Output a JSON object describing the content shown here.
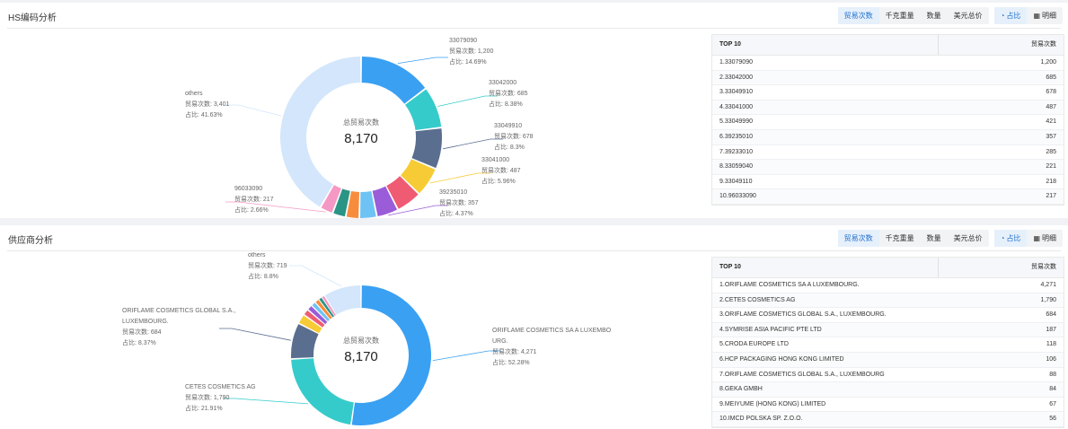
{
  "toolbar": {
    "metrics": [
      "贸易次数",
      "千克重量",
      "数量",
      "美元总价"
    ],
    "views": [
      "占比",
      "明细"
    ]
  },
  "panels": [
    {
      "title": "HS编码分析",
      "center": {
        "label": "总贸易次数",
        "value": "8,170"
      },
      "table": {
        "header": [
          "TOP 10",
          "贸易次数"
        ],
        "rows": [
          [
            "1.33079090",
            "1,200"
          ],
          [
            "2.33042000",
            "685"
          ],
          [
            "3.33049910",
            "678"
          ],
          [
            "4.33041000",
            "487"
          ],
          [
            "5.33049990",
            "421"
          ],
          [
            "6.39235010",
            "357"
          ],
          [
            "7.39233010",
            "285"
          ],
          [
            "8.33059040",
            "221"
          ],
          [
            "9.33049110",
            "218"
          ],
          [
            "10.96033090",
            "217"
          ]
        ]
      },
      "chart_data": {
        "type": "pie",
        "center_label": "总贸易次数",
        "total": 8170,
        "slices": [
          {
            "label": "33079090",
            "value": 1200,
            "share": "14.69%",
            "color": "#3aa0f2"
          },
          {
            "label": "33042000",
            "value": 685,
            "share": "8.38%",
            "color": "#36cbcb"
          },
          {
            "label": "33049910",
            "value": 678,
            "share": "8.3%",
            "color": "#5a6e8f"
          },
          {
            "label": "33041000",
            "value": 487,
            "share": "5.96%",
            "color": "#f6cb35"
          },
          {
            "label": "33049990",
            "value": 421,
            "share": "",
            "color": "#ef5b73"
          },
          {
            "label": "39235010",
            "value": 357,
            "share": "4.37%",
            "color": "#9a5cd9"
          },
          {
            "label": "39233010",
            "value": 285,
            "share": "",
            "color": "#6ec3f4"
          },
          {
            "label": "33059040",
            "value": 221,
            "share": "",
            "color": "#f78d3c"
          },
          {
            "label": "33049110",
            "value": 218,
            "share": "",
            "color": "#2a9485"
          },
          {
            "label": "96033090",
            "value": 217,
            "share": "2.66%",
            "color": "#f598c4"
          },
          {
            "label": "others",
            "value": 3401,
            "share": "41.63%",
            "color": "#d3e6fb"
          }
        ],
        "callouts": [
          {
            "slice": 0,
            "lines": [
              "33079090",
              "贸易次数: 1,200",
              "占比: 14.69%"
            ]
          },
          {
            "slice": 1,
            "lines": [
              "33042000",
              "贸易次数: 685",
              "占比: 8.38%"
            ]
          },
          {
            "slice": 2,
            "lines": [
              "33049910",
              "贸易次数: 678",
              "占比: 8.3%"
            ]
          },
          {
            "slice": 3,
            "lines": [
              "33041000",
              "贸易次数: 487",
              "占比: 5.96%"
            ]
          },
          {
            "slice": 5,
            "lines": [
              "39235010",
              "贸易次数: 357",
              "占比: 4.37%"
            ]
          },
          {
            "slice": 9,
            "lines": [
              "96033090",
              "贸易次数: 217",
              "占比: 2.66%"
            ]
          },
          {
            "slice": 10,
            "lines": [
              "others",
              "贸易次数: 3,401",
              "占比: 41.63%"
            ]
          }
        ]
      }
    },
    {
      "title": "供应商分析",
      "center": {
        "label": "总贸易次数",
        "value": "8,170"
      },
      "table": {
        "header": [
          "TOP 10",
          "贸易次数"
        ],
        "rows": [
          [
            "1.ORIFLAME COSMETICS SA A LUXEMBOURG.",
            "4,271"
          ],
          [
            "2.CETES COSMETICS AG",
            "1,790"
          ],
          [
            "3.ORIFLAME COSMETICS GLOBAL S.A., LUXEMBOURG.",
            "684"
          ],
          [
            "4.SYMRISE ASIA PACIFIC PTE LTD",
            "187"
          ],
          [
            "5.CRODA EUROPE LTD",
            "118"
          ],
          [
            "6.HCP PACKAGING HONG KONG LIMITED",
            "106"
          ],
          [
            "7.ORIFLAME COSMETICS GLOBAL S.A., LUXEMBOURG",
            "88"
          ],
          [
            "8.GEKA GMBH",
            "84"
          ],
          [
            "9.MEIYUME (HONG KONG) LIMITED",
            "67"
          ],
          [
            "10.IMCD POLSKA SP. Z.O.O.",
            "56"
          ]
        ]
      },
      "chart_data": {
        "type": "pie",
        "center_label": "总贸易次数",
        "total": 8170,
        "slices": [
          {
            "label": "ORIFLAME COSMETICS SA A LUXEMBOURG.",
            "value": 4271,
            "share": "52.28%",
            "color": "#3aa0f2"
          },
          {
            "label": "CETES COSMETICS AG",
            "value": 1790,
            "share": "21.91%",
            "color": "#36cbcb"
          },
          {
            "label": "ORIFLAME COSMETICS GLOBAL S.A., LUXEMBOURG.",
            "value": 684,
            "share": "8.37%",
            "color": "#5a6e8f"
          },
          {
            "label": "SYMRISE ASIA PACIFIC PTE LTD",
            "value": 187,
            "share": "",
            "color": "#f6cb35"
          },
          {
            "label": "CRODA EUROPE LTD",
            "value": 118,
            "share": "",
            "color": "#ef5b73"
          },
          {
            "label": "HCP PACKAGING HONG KONG LIMITED",
            "value": 106,
            "share": "",
            "color": "#9a5cd9"
          },
          {
            "label": "ORIFLAME COSMETICS GLOBAL S.A., LUXEMBOURG",
            "value": 88,
            "share": "",
            "color": "#6ec3f4"
          },
          {
            "label": "GEKA GMBH",
            "value": 84,
            "share": "",
            "color": "#f78d3c"
          },
          {
            "label": "MEIYUME (HONG KONG) LIMITED",
            "value": 67,
            "share": "",
            "color": "#2a9485"
          },
          {
            "label": "IMCD POLSKA SP. Z.O.O.",
            "value": 56,
            "share": "",
            "color": "#f598c4"
          },
          {
            "label": "others",
            "value": 719,
            "share": "8.8%",
            "color": "#d3e6fb"
          }
        ],
        "callouts": [
          {
            "slice": 0,
            "lines": [
              "ORIFLAME COSMETICS SA A LUXEMBO",
              "URG.",
              "贸易次数: 4,271",
              "占比: 52.28%"
            ]
          },
          {
            "slice": 1,
            "lines": [
              "CETES COSMETICS AG",
              "贸易次数: 1,790",
              "占比: 21.91%"
            ]
          },
          {
            "slice": 2,
            "lines": [
              "ORIFLAME COSMETICS GLOBAL S.A.,",
              "LUXEMBOURG.",
              "贸易次数: 684",
              "占比: 8.37%"
            ]
          },
          {
            "slice": 10,
            "lines": [
              "others",
              "贸易次数: 719",
              "占比: 8.8%"
            ]
          }
        ]
      }
    }
  ]
}
